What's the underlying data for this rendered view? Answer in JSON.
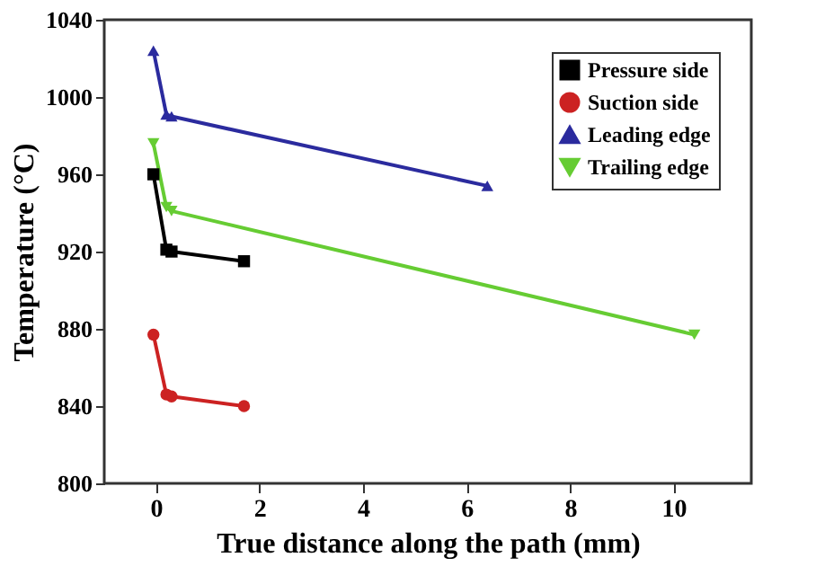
{
  "chart_data": {
    "type": "line",
    "xlabel": "True distance along the path (mm)",
    "ylabel": "Temperature (°C)",
    "xlim": [
      -1,
      11.5
    ],
    "xticks": [
      0,
      2,
      4,
      6,
      8,
      10
    ],
    "ylim": [
      800,
      1040
    ],
    "yticks": [
      800,
      840,
      880,
      920,
      960,
      1000,
      1040
    ],
    "grid": false,
    "legend": "top right",
    "series": [
      {
        "name": "Pressure side",
        "color": "#000000",
        "marker": "square",
        "x": [
          -0.05,
          0.2,
          0.3,
          1.7
        ],
        "values": [
          960,
          921,
          920,
          915
        ]
      },
      {
        "name": "Suction side",
        "color": "#cc2222",
        "marker": "circle",
        "x": [
          -0.05,
          0.2,
          0.3,
          1.7
        ],
        "values": [
          877,
          846,
          845,
          840
        ]
      },
      {
        "name": "Leading edge",
        "color": "#2b2b9e",
        "marker": "triangle-up",
        "x": [
          -0.05,
          0.2,
          0.3,
          6.4
        ],
        "values": [
          1024,
          991,
          990,
          954
        ]
      },
      {
        "name": "Trailing edge",
        "color": "#66cc33",
        "marker": "triangle-down",
        "x": [
          -0.05,
          0.2,
          0.3,
          10.4
        ],
        "values": [
          976,
          943,
          941,
          877
        ]
      }
    ]
  }
}
